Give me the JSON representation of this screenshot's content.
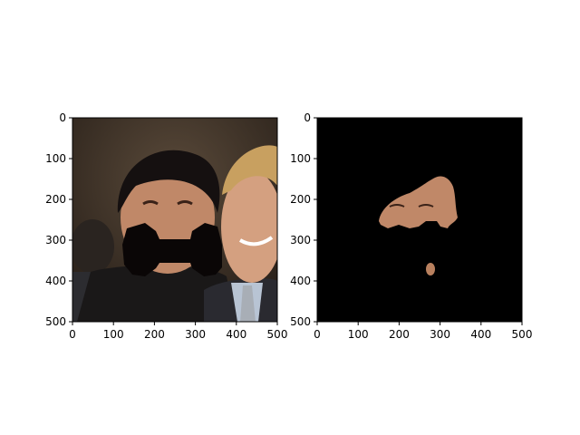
{
  "chart_data": [
    {
      "type": "image",
      "panel": "left",
      "description_visible": "photo of two smiling men; black bow-tie shape drawn over the left man's mouth and chin",
      "xlim": [
        0,
        500
      ],
      "ylim": [
        500,
        0
      ],
      "xticks": [
        0,
        100,
        200,
        300,
        400,
        500
      ],
      "yticks": [
        0,
        100,
        200,
        300,
        400,
        500
      ],
      "xtick_labels": [
        "0",
        "100",
        "200",
        "300",
        "400",
        "500"
      ],
      "ytick_labels": [
        "0",
        "100",
        "200",
        "300",
        "400",
        "500"
      ],
      "overlay_mask_color": "#0a0606"
    },
    {
      "type": "image",
      "panel": "right",
      "description_visible": "segmented face region on black background with small isolated blob below",
      "xlim": [
        0,
        500
      ],
      "ylim": [
        500,
        0
      ],
      "xticks": [
        0,
        100,
        200,
        300,
        400,
        500
      ],
      "yticks": [
        0,
        100,
        200,
        300,
        400,
        500
      ],
      "xtick_labels": [
        "0",
        "100",
        "200",
        "300",
        "400",
        "500"
      ],
      "ytick_labels": [
        "0",
        "100",
        "200",
        "300",
        "400",
        "500"
      ],
      "background_color": "#000000"
    }
  ],
  "colors": {
    "skin": "#c89070",
    "skin_shadow": "#8a5a40",
    "hair_dark": "#151010",
    "hair_blond": "#c8a060",
    "jacket": "#1a1818",
    "shirt": "#b8c4d4",
    "tie": "#a8aeb6",
    "backdrop": "#3a3028"
  }
}
